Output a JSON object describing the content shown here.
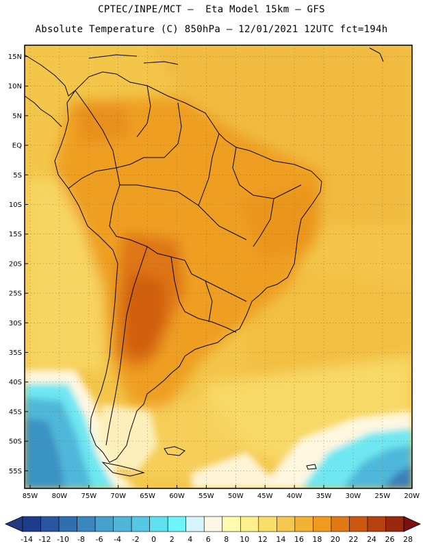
{
  "title_line1": "CPTEC/INPE/MCT –  Eta Model 15km – GFS",
  "title_line2": "Absolute Temperature (C) 850hPa – 12/01/2021 12UTC fct=194h",
  "lat_labels": [
    "15N",
    "10N",
    "5N",
    "EQ",
    "5S",
    "10S",
    "15S",
    "20S",
    "25S",
    "30S",
    "35S",
    "40S",
    "45S",
    "50S",
    "55S"
  ],
  "lon_labels": [
    "85W",
    "80W",
    "75W",
    "70W",
    "65W",
    "60W",
    "55W",
    "50W",
    "45W",
    "40W",
    "35W",
    "30W",
    "25W",
    "20W"
  ],
  "colorbar": {
    "ticks": [
      "-14",
      "-12",
      "-10",
      "-8",
      "-6",
      "-4",
      "-2",
      "0",
      "2",
      "4",
      "6",
      "8",
      "10",
      "12",
      "14",
      "16",
      "18",
      "20",
      "22",
      "24",
      "26",
      "28"
    ],
    "colors": [
      "#1e3c8c",
      "#2a55a0",
      "#2f6fb0",
      "#3a87bf",
      "#45a0cc",
      "#4fb6d8",
      "#55c9e3",
      "#5ee0ee",
      "#6ef5fa",
      "#d6f4fb",
      "#fff7e6",
      "#fffcb0",
      "#fdf08c",
      "#f9de6c",
      "#f4c84c",
      "#f2b233",
      "#ef9b1e",
      "#e07914",
      "#cc5810",
      "#b6400e",
      "#98290c"
    ],
    "under_color": "#233a82",
    "over_color": "#7a1010"
  }
}
